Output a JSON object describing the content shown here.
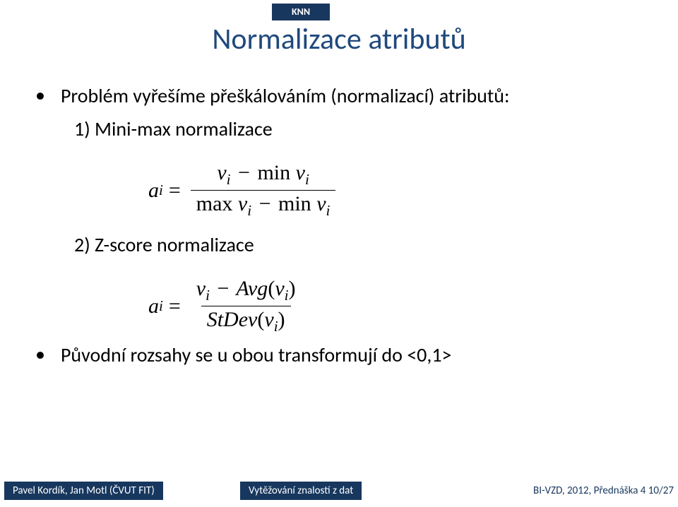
{
  "topic_tab": "KNN",
  "title": "Normalizace atributů",
  "bullet1": "Problém vyřešíme přeškálováním (normalizací) atributů:",
  "item1": "1)   Mini-max normalizace",
  "item2": "2)   Z-score normalizace",
  "formula1": {
    "lhs_var": "a",
    "lhs_sub": "i",
    "eq": "=",
    "num": "v<sub class='sub'>i</sub> <span class='op'>−</span> <span class='fn'>min</span> v<sub class='sub'>i</sub>",
    "den": "<span class='fn'>max</span> v<sub class='sub'>i</sub> <span class='op'>−</span> <span class='fn'>min</span> v<sub class='sub'>i</sub>"
  },
  "formula2": {
    "lhs_var": "a",
    "lhs_sub": "i",
    "eq": "=",
    "num": "v<sub class='sub'>i</sub> <span class='op'>−</span> Avg<span class='fn'>(</span>v<sub class='sub'>i</sub><span class='fn'>)</span>",
    "den": "StDev<span class='fn'>(</span>v<sub class='sub'>i</sub><span class='fn'>)</span>"
  },
  "bullet2": "Původní rozsahy se u obou transformují do <0,1>",
  "footer": {
    "left": "Pavel Kordík, Jan Motl (ČVUT FIT)",
    "center": "Vytěžování znalostí z dat",
    "right": "BI-VZD, 2012, Přednáška 4       10/27"
  },
  "colors": {
    "accent": "#17375e",
    "title": "#1f497d",
    "bg": "#ffffff",
    "text": "#000000"
  }
}
